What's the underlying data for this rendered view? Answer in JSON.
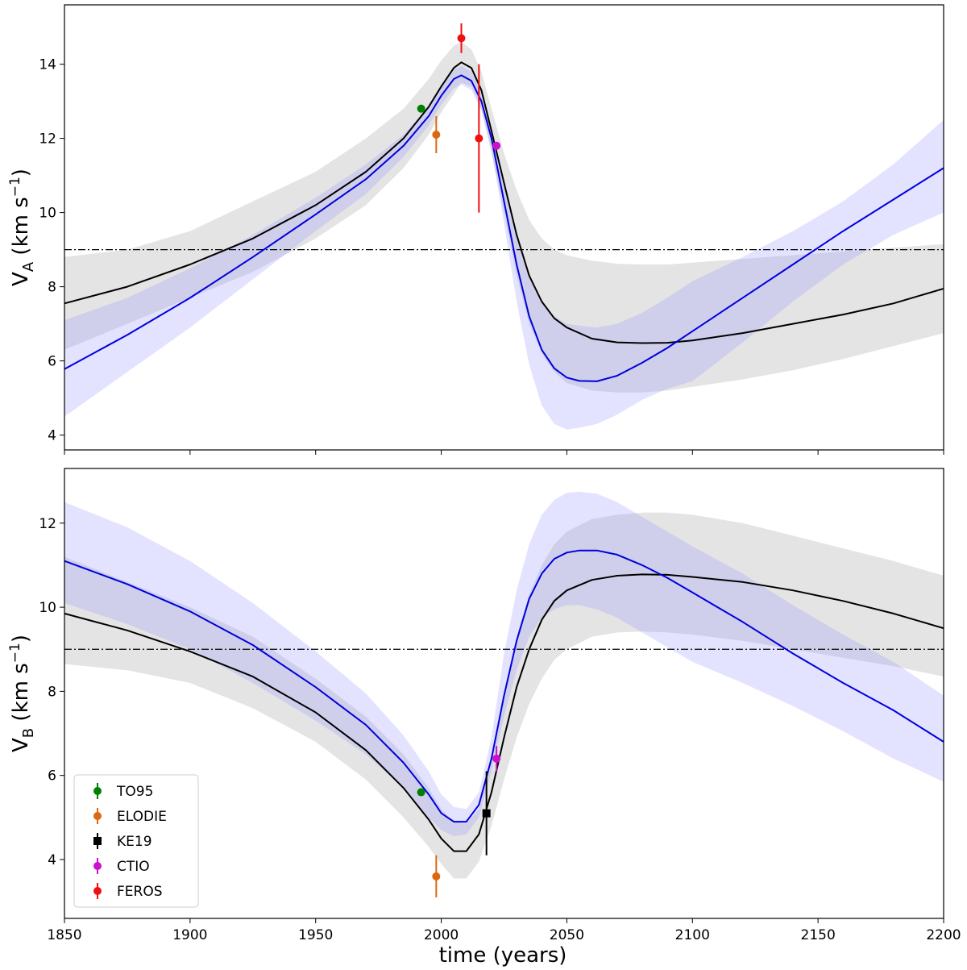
{
  "chart_data": [
    {
      "type": "line",
      "panel": "top",
      "ylabel_main": "V",
      "ylabel_sub": "A",
      "ylabel_unit_prefix": " (km s",
      "ylabel_unit_exp": "−1",
      "ylabel_unit_suffix": ")",
      "xlabel": "",
      "xlim": [
        1850,
        2200
      ],
      "ylim": [
        3.6,
        15.6
      ],
      "yticks": [
        4,
        6,
        8,
        10,
        12,
        14
      ],
      "xticks": [
        1850,
        1900,
        1950,
        2000,
        2050,
        2100,
        2150,
        2200
      ],
      "show_xtick_labels": false,
      "reference_line": 9,
      "series": [
        {
          "name": "model-black",
          "color": "#000000",
          "x": [
            1850,
            1875,
            1900,
            1925,
            1950,
            1970,
            1985,
            1995,
            2000,
            2005,
            2008,
            2012,
            2016,
            2020,
            2025,
            2030,
            2035,
            2040,
            2045,
            2050,
            2060,
            2070,
            2080,
            2090,
            2100,
            2120,
            2140,
            2160,
            2180,
            2200
          ],
          "y": [
            7.55,
            8.0,
            8.6,
            9.3,
            10.2,
            11.1,
            12.0,
            12.85,
            13.4,
            13.9,
            14.05,
            13.9,
            13.3,
            12.2,
            10.8,
            9.4,
            8.3,
            7.6,
            7.15,
            6.9,
            6.6,
            6.5,
            6.48,
            6.49,
            6.55,
            6.75,
            7.0,
            7.25,
            7.55,
            7.95
          ],
          "band_upper": [
            8.8,
            9.0,
            9.5,
            10.3,
            11.1,
            12.0,
            12.8,
            13.6,
            14.1,
            14.5,
            14.6,
            14.4,
            13.8,
            12.8,
            11.6,
            10.6,
            9.8,
            9.3,
            9.0,
            8.85,
            8.7,
            8.62,
            8.6,
            8.6,
            8.65,
            8.75,
            8.85,
            8.95,
            9.05,
            9.15
          ],
          "band_lower": [
            6.3,
            7.0,
            7.7,
            8.4,
            9.3,
            10.2,
            11.2,
            12.1,
            12.7,
            13.2,
            13.5,
            13.4,
            12.8,
            11.6,
            10.0,
            8.3,
            7.0,
            6.2,
            5.7,
            5.4,
            5.2,
            5.15,
            5.15,
            5.2,
            5.3,
            5.5,
            5.75,
            6.05,
            6.4,
            6.75
          ]
        },
        {
          "name": "model-blue",
          "color": "#0000dd",
          "x": [
            1850,
            1875,
            1900,
            1925,
            1950,
            1970,
            1985,
            1995,
            2000,
            2005,
            2008,
            2012,
            2016,
            2020,
            2025,
            2030,
            2035,
            2040,
            2045,
            2050,
            2055,
            2062,
            2070,
            2080,
            2090,
            2100,
            2120,
            2140,
            2160,
            2180,
            2200
          ],
          "y": [
            5.78,
            6.7,
            7.7,
            8.8,
            9.95,
            10.9,
            11.8,
            12.6,
            13.15,
            13.6,
            13.7,
            13.55,
            13.0,
            12.0,
            10.3,
            8.6,
            7.2,
            6.3,
            5.8,
            5.55,
            5.46,
            5.45,
            5.6,
            5.95,
            6.35,
            6.8,
            7.7,
            8.6,
            9.5,
            10.35,
            11.2
          ],
          "band_upper": [
            7.1,
            7.7,
            8.5,
            9.4,
            10.4,
            11.3,
            12.1,
            12.85,
            13.4,
            13.85,
            13.95,
            13.8,
            13.25,
            12.3,
            10.8,
            9.4,
            8.3,
            7.6,
            7.2,
            7.0,
            6.95,
            6.9,
            7.0,
            7.3,
            7.7,
            8.15,
            8.8,
            9.5,
            10.3,
            11.3,
            12.5
          ],
          "band_lower": [
            4.5,
            5.7,
            6.9,
            8.2,
            9.5,
            10.5,
            11.5,
            12.35,
            12.9,
            13.35,
            13.45,
            13.3,
            12.75,
            11.7,
            9.7,
            7.6,
            5.9,
            4.8,
            4.3,
            4.15,
            4.2,
            4.3,
            4.55,
            4.95,
            5.25,
            5.45,
            6.5,
            7.6,
            8.6,
            9.4,
            10.0
          ]
        }
      ],
      "points": [
        {
          "label": "TO95",
          "color": "#008000",
          "marker": "circle",
          "x": 1992,
          "y": 12.8,
          "err": 0.0
        },
        {
          "label": "ELODIE",
          "color": "#dd6610",
          "marker": "circle",
          "x": 1998,
          "y": 12.1,
          "err": 0.5
        },
        {
          "label": "FEROS",
          "color": "#ee1111",
          "marker": "circle",
          "x": 2008,
          "y": 14.7,
          "err": 0.4
        },
        {
          "label": "FEROS",
          "color": "#ee1111",
          "marker": "circle",
          "x": 2015,
          "y": 12.0,
          "err": 2.0
        },
        {
          "label": "CTIO",
          "color": "#cc11cc",
          "marker": "circle",
          "x": 2022,
          "y": 11.8,
          "err": 0.1
        }
      ]
    },
    {
      "type": "line",
      "panel": "bottom",
      "ylabel_main": "V",
      "ylabel_sub": "B",
      "ylabel_unit_prefix": " (km s",
      "ylabel_unit_exp": "−1",
      "ylabel_unit_suffix": ")",
      "xlabel": "time (years)",
      "xlim": [
        1850,
        2200
      ],
      "ylim": [
        2.6,
        13.3
      ],
      "yticks": [
        4,
        6,
        8,
        10,
        12
      ],
      "xticks": [
        1850,
        1900,
        1950,
        2000,
        2050,
        2100,
        2150,
        2200
      ],
      "show_xtick_labels": true,
      "reference_line": 9,
      "series": [
        {
          "name": "model-black",
          "color": "#000000",
          "x": [
            1850,
            1875,
            1900,
            1925,
            1950,
            1970,
            1985,
            1995,
            2000,
            2005,
            2010,
            2015,
            2020,
            2025,
            2030,
            2035,
            2040,
            2045,
            2050,
            2060,
            2070,
            2080,
            2090,
            2100,
            2120,
            2140,
            2160,
            2180,
            2200
          ],
          "y": [
            9.85,
            9.45,
            8.95,
            8.35,
            7.5,
            6.6,
            5.7,
            4.95,
            4.5,
            4.2,
            4.2,
            4.6,
            5.6,
            6.9,
            8.1,
            9.0,
            9.7,
            10.15,
            10.4,
            10.65,
            10.75,
            10.78,
            10.77,
            10.72,
            10.6,
            10.4,
            10.15,
            9.85,
            9.5
          ],
          "band_upper": [
            11.2,
            10.6,
            10.0,
            9.3,
            8.3,
            7.4,
            6.5,
            5.7,
            5.2,
            4.9,
            4.85,
            5.2,
            6.4,
            7.9,
            9.3,
            10.3,
            11.0,
            11.5,
            11.8,
            12.1,
            12.2,
            12.25,
            12.25,
            12.2,
            12.0,
            11.7,
            11.4,
            11.1,
            10.75
          ],
          "band_lower": [
            8.65,
            8.5,
            8.2,
            7.6,
            6.8,
            5.9,
            5.0,
            4.3,
            3.9,
            3.55,
            3.55,
            3.95,
            4.8,
            5.9,
            6.9,
            7.7,
            8.3,
            8.75,
            9.0,
            9.3,
            9.4,
            9.42,
            9.4,
            9.35,
            9.2,
            9.0,
            8.8,
            8.6,
            8.35
          ]
        },
        {
          "name": "model-blue",
          "color": "#0000dd",
          "x": [
            1850,
            1875,
            1900,
            1925,
            1950,
            1970,
            1985,
            1995,
            2000,
            2005,
            2010,
            2015,
            2020,
            2025,
            2030,
            2035,
            2040,
            2045,
            2050,
            2055,
            2062,
            2070,
            2080,
            2090,
            2100,
            2120,
            2140,
            2160,
            2180,
            2200
          ],
          "y": [
            11.1,
            10.55,
            9.9,
            9.1,
            8.1,
            7.2,
            6.3,
            5.55,
            5.1,
            4.9,
            4.9,
            5.3,
            6.4,
            7.9,
            9.2,
            10.2,
            10.8,
            11.15,
            11.3,
            11.35,
            11.35,
            11.25,
            11.0,
            10.7,
            10.35,
            9.65,
            8.9,
            8.2,
            7.55,
            6.8
          ],
          "band_upper": [
            12.5,
            11.9,
            11.1,
            10.1,
            8.95,
            7.95,
            6.95,
            6.1,
            5.55,
            5.25,
            5.2,
            5.6,
            6.9,
            8.9,
            10.4,
            11.5,
            12.2,
            12.55,
            12.72,
            12.75,
            12.7,
            12.5,
            12.15,
            11.8,
            11.45,
            10.8,
            10.05,
            9.35,
            8.7,
            7.9
          ],
          "band_lower": [
            10.1,
            9.6,
            9.0,
            8.2,
            7.3,
            6.5,
            5.7,
            5.0,
            4.7,
            4.55,
            4.6,
            5.0,
            6.1,
            7.4,
            8.5,
            9.3,
            9.75,
            9.95,
            10.05,
            10.05,
            9.95,
            9.75,
            9.4,
            9.05,
            8.7,
            8.2,
            7.65,
            7.05,
            6.4,
            5.85
          ]
        }
      ],
      "points": [
        {
          "label": "TO95",
          "color": "#008000",
          "marker": "circle",
          "x": 1992,
          "y": 5.6,
          "err": 0.0
        },
        {
          "label": "ELODIE",
          "color": "#dd6610",
          "marker": "circle",
          "x": 1998,
          "y": 3.6,
          "err": 0.5
        },
        {
          "label": "KE19",
          "color": "#000000",
          "marker": "square",
          "x": 2018,
          "y": 5.1,
          "err": 1.0
        },
        {
          "label": "CTIO",
          "color": "#cc11cc",
          "marker": "circle",
          "x": 2022,
          "y": 6.4,
          "err": 0.3
        }
      ],
      "legend": {
        "placement": "bottom-left",
        "entries": [
          {
            "label": "TO95",
            "color": "#008000",
            "marker": "circle"
          },
          {
            "label": "ELODIE",
            "color": "#dd6610",
            "marker": "circle"
          },
          {
            "label": "KE19",
            "color": "#000000",
            "marker": "square"
          },
          {
            "label": "CTIO",
            "color": "#cc11cc",
            "marker": "circle"
          },
          {
            "label": "FEROS",
            "color": "#ee1111",
            "marker": "circle"
          }
        ]
      }
    }
  ]
}
